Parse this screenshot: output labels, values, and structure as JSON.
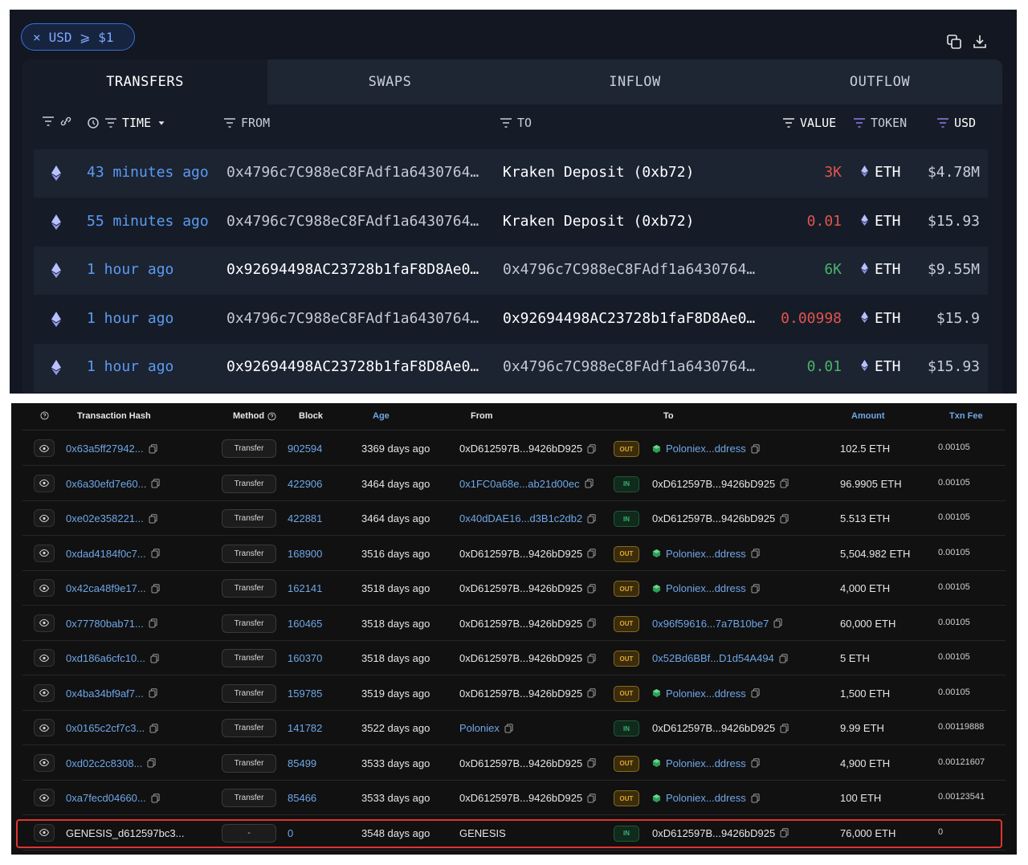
{
  "top_panel": {
    "filter_chip": {
      "label": "USD ⩾ $1",
      "close_symbol": "×"
    },
    "icons": [
      "copy-icon",
      "download-icon"
    ],
    "tabs": [
      {
        "label": "TRANSFERS",
        "active": true
      },
      {
        "label": "SWAPS",
        "active": false
      },
      {
        "label": "INFLOW",
        "active": false
      },
      {
        "label": "OUTFLOW",
        "active": false
      }
    ],
    "columns": {
      "time": "TIME",
      "from": "FROM",
      "to": "TO",
      "value": "VALUE",
      "token": "TOKEN",
      "usd": "USD"
    },
    "rows": [
      {
        "time": "43 minutes ago",
        "from": "0x4796c7C988eC8FAdf1a6430764…",
        "to": "Kraken Deposit (0xb72)",
        "value": "3K",
        "value_color": "#e0544e",
        "token": "ETH",
        "usd": "$4.78M"
      },
      {
        "time": "55 minutes ago",
        "from": "0x4796c7C988eC8FAdf1a6430764…",
        "to": "Kraken Deposit (0xb72)",
        "value": "0.01",
        "value_color": "#e0544e",
        "token": "ETH",
        "usd": "$15.93"
      },
      {
        "time": "1 hour ago",
        "from": "0x92694498AC23728b1faF8D8Ae0…",
        "to": "0x4796c7C988eC8FAdf1a6430764…",
        "value": "6K",
        "value_color": "#49b36a",
        "token": "ETH",
        "usd": "$9.55M"
      },
      {
        "time": "1 hour ago",
        "from": "0x4796c7C988eC8FAdf1a6430764…",
        "to": "0x92694498AC23728b1faF8D8Ae0…",
        "value": "0.00998",
        "value_color": "#e0544e",
        "token": "ETH",
        "usd": "$15.9"
      },
      {
        "time": "1 hour ago",
        "from": "0x92694498AC23728b1faF8D8Ae0…",
        "to": "0x4796c7C988eC8FAdf1a6430764…",
        "value": "0.01",
        "value_color": "#49b36a",
        "token": "ETH",
        "usd": "$15.93"
      }
    ]
  },
  "bottom_panel": {
    "columns": {
      "hash": "Transaction Hash",
      "method": "Method",
      "block": "Block",
      "age": "Age",
      "from": "From",
      "to": "To",
      "amount": "Amount",
      "fee": "Txn Fee"
    },
    "rows": [
      {
        "hash": "0x63a5ff27942...",
        "method": "Transfer",
        "block": "902594",
        "age": "3369 days ago",
        "from": "0xD612597B...9426bD925",
        "dir": "OUT",
        "to": "Poloniex...ddress",
        "amount": "102.5 ETH",
        "fee": "0.00105"
      },
      {
        "hash": "0x6a30efd7e60...",
        "method": "Transfer",
        "block": "422906",
        "age": "3464 days ago",
        "from": "0x1FC0a68e...ab21d00ec",
        "dir": "IN",
        "to": "0xD612597B...9426bD925",
        "amount": "96.9905 ETH",
        "fee": "0.00105"
      },
      {
        "hash": "0xe02e358221...",
        "method": "Transfer",
        "block": "422881",
        "age": "3464 days ago",
        "from": "0x40dDAE16...d3B1c2db2",
        "dir": "IN",
        "to": "0xD612597B...9426bD925",
        "amount": "5.513 ETH",
        "fee": "0.00105"
      },
      {
        "hash": "0xdad4184f0c7...",
        "method": "Transfer",
        "block": "168900",
        "age": "3516 days ago",
        "from": "0xD612597B...9426bD925",
        "dir": "OUT",
        "to": "Poloniex...ddress",
        "amount": "5,504.982 ETH",
        "fee": "0.00105"
      },
      {
        "hash": "0x42ca48f9e17...",
        "method": "Transfer",
        "block": "162141",
        "age": "3518 days ago",
        "from": "0xD612597B...9426bD925",
        "dir": "OUT",
        "to": "Poloniex...ddress",
        "amount": "4,000 ETH",
        "fee": "0.00105"
      },
      {
        "hash": "0x77780bab71...",
        "method": "Transfer",
        "block": "160465",
        "age": "3518 days ago",
        "from": "0xD612597B...9426bD925",
        "dir": "OUT",
        "to": "0x96f59616...7a7B10be7",
        "amount": "60,000 ETH",
        "fee": "0.00105"
      },
      {
        "hash": "0xd186a6cfc10...",
        "method": "Transfer",
        "block": "160370",
        "age": "3518 days ago",
        "from": "0xD612597B...9426bD925",
        "dir": "OUT",
        "to": "0x52Bd6BBf...D1d54A494",
        "amount": "5 ETH",
        "fee": "0.00105"
      },
      {
        "hash": "0x4ba34bf9af7...",
        "method": "Transfer",
        "block": "159785",
        "age": "3519 days ago",
        "from": "0xD612597B...9426bD925",
        "dir": "OUT",
        "to": "Poloniex...ddress",
        "amount": "1,500 ETH",
        "fee": "0.00105"
      },
      {
        "hash": "0x0165c2cf7c3...",
        "method": "Transfer",
        "block": "141782",
        "age": "3522 days ago",
        "from": "Poloniex",
        "dir": "IN",
        "to": "0xD612597B...9426bD925",
        "amount": "9.99 ETH",
        "fee": "0.00119888"
      },
      {
        "hash": "0xd02c2c8308...",
        "method": "Transfer",
        "block": "85499",
        "age": "3533 days ago",
        "from": "0xD612597B...9426bD925",
        "dir": "OUT",
        "to": "Poloniex...ddress",
        "amount": "4,900 ETH",
        "fee": "0.00121607"
      },
      {
        "hash": "0xa7fecd04660...",
        "method": "Transfer",
        "block": "85466",
        "age": "3533 days ago",
        "from": "0xD612597B...9426bD925",
        "dir": "OUT",
        "to": "Poloniex...ddress",
        "amount": "100 ETH",
        "fee": "0.00123541"
      },
      {
        "hash": "GENESIS_d612597bc3...",
        "method": "-",
        "block": "0",
        "age": "3548 days ago",
        "from": "GENESIS",
        "dir": "IN",
        "to": "0xD612597B...9426bD925",
        "amount": "76,000 ETH",
        "fee": "0"
      }
    ]
  }
}
